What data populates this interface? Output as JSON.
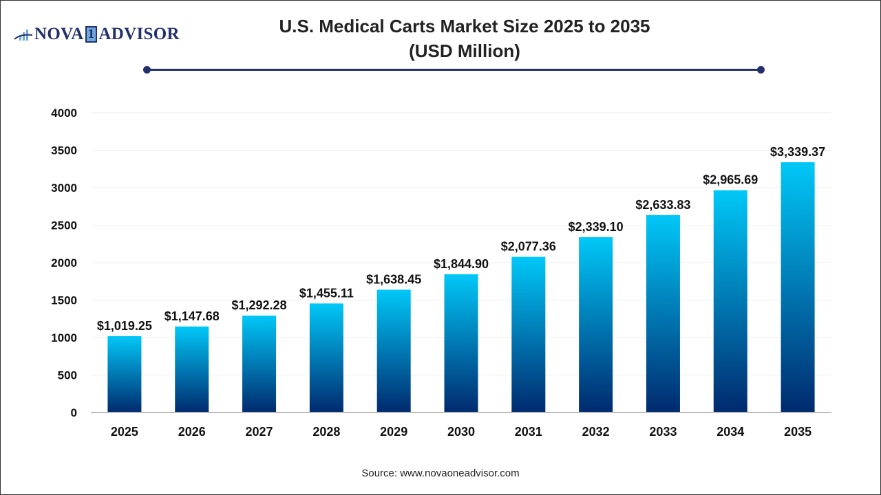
{
  "logo": {
    "text_before": "NOVA",
    "text_one": "1",
    "text_after": "ADVISOR",
    "icon": "bar-chart-swoosh-icon"
  },
  "header": {
    "title_line1": "U.S. Medical Carts Market Size 2025 to 2035",
    "title_line2": "(USD Million)"
  },
  "source": "Source: www.novaoneadvisor.com",
  "colors": {
    "bar_top": "#00c8f8",
    "bar_bottom": "#002a6e",
    "accent": "#23306b"
  },
  "chart_data": {
    "type": "bar",
    "title": "U.S. Medical Carts Market Size 2025 to 2035 (USD Million)",
    "categories": [
      "2025",
      "2026",
      "2027",
      "2028",
      "2029",
      "2030",
      "2031",
      "2032",
      "2033",
      "2034",
      "2035"
    ],
    "values": [
      1019.25,
      1147.68,
      1292.28,
      1455.11,
      1638.45,
      1844.9,
      2077.36,
      2339.1,
      2633.83,
      2965.69,
      3339.37
    ],
    "data_labels": [
      "$1,019.25",
      "$1,147.68",
      "$1,292.28",
      "$1,455.11",
      "$1,638.45",
      "$1,844.90",
      "$2,077.36",
      "$2,339.10",
      "$2,633.83",
      "$2,965.69",
      "$3,339.37"
    ],
    "yticks": [
      0,
      500,
      1000,
      1500,
      2000,
      2500,
      3000,
      3500,
      4000
    ],
    "ylim": [
      0,
      4000
    ],
    "xlabel": "",
    "ylabel": "",
    "grid": true,
    "legend": "none"
  }
}
